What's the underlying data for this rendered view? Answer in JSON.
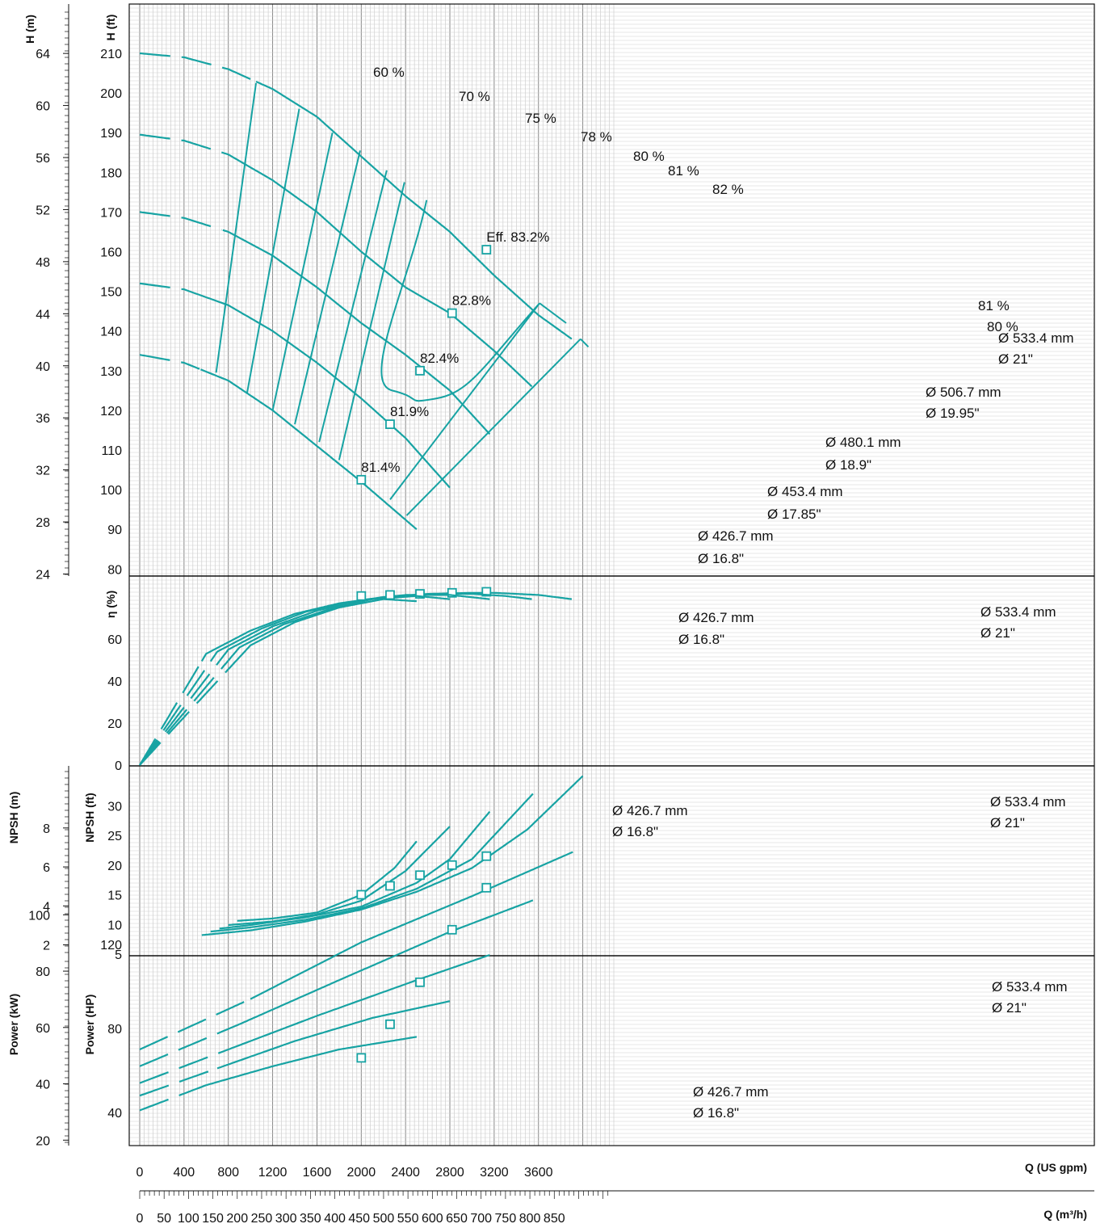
{
  "colors": {
    "curve": "#17a3a3",
    "grid": "#9a9a9a",
    "frame": "#111111"
  },
  "chart_data": {
    "type": "line",
    "x_axis": {
      "label": "Q (US gpm)",
      "ticks": [
        0,
        400,
        800,
        1200,
        1600,
        2000,
        2400,
        2800,
        3200,
        3600
      ],
      "range": [
        0,
        4300
      ]
    },
    "x_axis_secondary": {
      "label": "Q (m³/h)",
      "ticks": [
        0,
        50,
        100,
        150,
        200,
        250,
        300,
        350,
        400,
        450,
        500,
        550,
        600,
        650,
        700,
        750,
        800,
        850
      ],
      "factor_gpm_per_m3h": 4.4029
    },
    "head": {
      "ylabel": "H (ft)",
      "ylabel_secondary": "H (m)",
      "ticks": [
        80,
        90,
        100,
        110,
        120,
        130,
        140,
        150,
        160,
        170,
        180,
        190,
        200,
        210
      ],
      "ticks_secondary": [
        24,
        28,
        32,
        36,
        40,
        44,
        48,
        52,
        56,
        60,
        64
      ],
      "ylim": [
        77,
        220
      ],
      "series": [
        {
          "label1": "Ø 533.4  mm",
          "label2": "Ø 21\"",
          "x": [
            0,
            400,
            800,
            1200,
            1600,
            2000,
            2400,
            2800,
            3200,
            3600,
            3900
          ],
          "y": [
            210,
            209,
            206,
            201,
            194,
            184,
            174,
            165,
            154,
            144,
            138
          ],
          "dashed_to": 1050,
          "marker": {
            "x": 3130,
            "y": 160.5,
            "label": "Eff.  83.2%"
          }
        },
        {
          "label1": "Ø 506.7  mm",
          "label2": "Ø 19.95\"",
          "x": [
            0,
            400,
            800,
            1200,
            1600,
            2000,
            2400,
            2800,
            3200,
            3540
          ],
          "y": [
            189.5,
            188,
            184.5,
            178,
            170,
            160,
            151,
            144.5,
            135,
            126
          ],
          "dashed_to": 900,
          "marker": {
            "x": 2820,
            "y": 144.5,
            "label": "82.8%"
          }
        },
        {
          "label1": "Ø 480.1  mm",
          "label2": "Ø 18.9\"",
          "x": [
            0,
            400,
            800,
            1200,
            1600,
            2000,
            2400,
            2800,
            3160
          ],
          "y": [
            170,
            168.5,
            165,
            159,
            151,
            142,
            134,
            125,
            114
          ],
          "dashed_to": 750,
          "marker": {
            "x": 2530,
            "y": 130,
            "label": "82.4%"
          }
        },
        {
          "label1": "Ø 453.4  mm",
          "label2": "Ø 17.85\"",
          "x": [
            0,
            400,
            800,
            1200,
            1600,
            2000,
            2400,
            2800
          ],
          "y": [
            152,
            150.5,
            146.5,
            140,
            132,
            123,
            113,
            100.5
          ],
          "dashed_to": 600,
          "marker": {
            "x": 2260,
            "y": 116.5,
            "label": "81.9%"
          }
        },
        {
          "label1": "Ø 426.7  mm",
          "label2": "Ø 16.8\"",
          "x": [
            0,
            400,
            800,
            1200,
            1600,
            2000,
            2500
          ],
          "y": [
            134,
            132,
            127.5,
            120,
            111,
            102,
            90
          ],
          "dashed_to": 550,
          "marker": {
            "x": 2000,
            "y": 102.5,
            "label": "81.4%"
          }
        }
      ],
      "efficiency_lines": [
        {
          "label": "60 %",
          "points": [
            [
              690,
              129.5
            ],
            [
              1050,
              202.5
            ]
          ]
        },
        {
          "label": "70 %",
          "points": [
            [
              970,
              124.5
            ],
            [
              1440,
              196
            ]
          ]
        },
        {
          "label": "75 %",
          "points": [
            [
              1200,
              120
            ],
            [
              1740,
              190
            ]
          ]
        },
        {
          "label": "78 %",
          "points": [
            [
              1400,
              116.5
            ],
            [
              1990,
              185.5
            ]
          ]
        },
        {
          "label": "80 %",
          "points": [
            [
              1620,
              112
            ],
            [
              2230,
              180.5
            ]
          ]
        },
        {
          "label": "81 %",
          "points": [
            [
              1800,
              107.5
            ],
            [
              2390,
              177.5
            ]
          ]
        },
        {
          "label": "82 %",
          "points": [
            [
              2590,
              173
            ]
          ]
        },
        {
          "label": "81 %",
          "points": [
            [
              2260,
              97.5
            ],
            [
              3610,
              147
            ]
          ]
        },
        {
          "label": "80 %",
          "points": [
            [
              2410,
              93.5
            ],
            [
              3980,
              138
            ]
          ]
        }
      ],
      "eff_82_loop": [
        [
          2590,
          173
        ],
        [
          2430,
          152
        ],
        [
          2280,
          125
        ],
        [
          2380,
          121.5
        ],
        [
          2680,
          123
        ],
        [
          3100,
          131
        ],
        [
          3610,
          147
        ]
      ],
      "eff_81_ext": [
        [
          3610,
          147
        ],
        [
          3850,
          142
        ]
      ],
      "eff_80_ext": [
        [
          3980,
          138
        ],
        [
          4050,
          136
        ]
      ]
    },
    "efficiency": {
      "ylabel": "η (%)",
      "ticks": [
        0,
        20,
        40,
        60
      ],
      "ylim": [
        0,
        90
      ],
      "series": [
        {
          "label1": "Ø 533.4  mm",
          "label2": "Ø 21\"",
          "x": [
            0,
            600,
            1000,
            1400,
            1800,
            2200,
            2600,
            3000,
            3200,
            3600,
            3900
          ],
          "y": [
            0,
            53,
            64,
            72,
            77,
            80,
            81.5,
            82,
            82,
            81,
            79
          ],
          "dashed_to": 560,
          "marker": {
            "x": 3130,
            "y": 82.5
          }
        },
        {
          "label1": "",
          "label2": "",
          "x": [
            0,
            700,
            1100,
            1500,
            1900,
            2300,
            2700,
            3000,
            3300,
            3540
          ],
          "y": [
            0,
            54,
            65,
            73,
            77.5,
            80.5,
            81.5,
            81.5,
            80.5,
            79
          ],
          "dashed_to": 640,
          "marker": {
            "x": 2820,
            "y": 82
          }
        },
        {
          "label1": "",
          "label2": "",
          "x": [
            0,
            800,
            1200,
            1600,
            2000,
            2400,
            2800,
            3160
          ],
          "y": [
            0,
            55,
            66,
            73.5,
            78.5,
            81,
            81,
            79
          ],
          "dashed_to": 720,
          "marker": {
            "x": 2530,
            "y": 81.5
          }
        },
        {
          "label1": "",
          "label2": "",
          "x": [
            0,
            900,
            1300,
            1700,
            2100,
            2500,
            2800
          ],
          "y": [
            0,
            56,
            67,
            74,
            79,
            80.5,
            79
          ],
          "dashed_to": 800,
          "marker": {
            "x": 2260,
            "y": 81
          }
        },
        {
          "label1": "Ø 426.7  mm",
          "label2": "Ø 16.8\"",
          "x": [
            0,
            1000,
            1400,
            1800,
            2200,
            2500
          ],
          "y": [
            0,
            57,
            68,
            75,
            79,
            78
          ],
          "dashed_to": 900,
          "marker": {
            "x": 2000,
            "y": 80.5
          }
        }
      ]
    },
    "npsh": {
      "ylabel": "NPSH (ft)",
      "ylabel_secondary": "NPSH (m)",
      "ticks": [
        5,
        10,
        15,
        20,
        25,
        30
      ],
      "ticks_secondary": [
        2,
        4,
        6,
        8
      ],
      "ylim": [
        5,
        37
      ],
      "series": [
        {
          "label1": "Ø 533.4  mm",
          "label2": "Ø 21\"",
          "x": [
            560,
            1000,
            1500,
            2000,
            2500,
            3000,
            3500,
            4000
          ],
          "y": [
            8.2,
            9,
            10.5,
            12.5,
            15.5,
            19.5,
            26,
            35
          ],
          "marker": {
            "x": 3130,
            "y": 21.5
          }
        },
        {
          "label1": "",
          "label2": "",
          "x": [
            640,
            1000,
            1500,
            2000,
            2500,
            3000,
            3550
          ],
          "y": [
            8.8,
            9.5,
            10.8,
            12.7,
            16,
            21,
            32
          ],
          "marker": {
            "x": 2820,
            "y": 20
          }
        },
        {
          "label1": "",
          "label2": "",
          "x": [
            720,
            1000,
            1500,
            2000,
            2500,
            2800,
            3160
          ],
          "y": [
            9.3,
            9.9,
            11.2,
            13,
            17,
            21,
            29
          ],
          "marker": {
            "x": 2530,
            "y": 18.3
          }
        },
        {
          "label1": "",
          "label2": "",
          "x": [
            800,
            1200,
            1600,
            2000,
            2400,
            2800
          ],
          "y": [
            9.9,
            10.5,
            11.7,
            14,
            19,
            26.5
          ],
          "marker": {
            "x": 2260,
            "y": 16.5
          }
        },
        {
          "label1": "Ø 426.7  mm",
          "label2": "Ø 16.8\"",
          "x": [
            880,
            1200,
            1600,
            2000,
            2300,
            2500
          ],
          "y": [
            10.6,
            11,
            12,
            15,
            19.5,
            24
          ],
          "marker": {
            "x": 2000,
            "y": 15
          }
        }
      ]
    },
    "power": {
      "ylabel": "Power (HP)",
      "ylabel_secondary": "Power (kW)",
      "ticks": [
        40,
        80,
        120
      ],
      "ticks_secondary": [
        20,
        40,
        60,
        80,
        100
      ],
      "ylim": [
        20,
        175
      ],
      "series": [
        {
          "label1": "Ø 533.4  mm",
          "label2": "Ø 21\"",
          "x": [
            0,
            1000,
            2000,
            3000,
            3910
          ],
          "y": [
            70,
            94,
            121,
            143,
            164
          ],
          "dashed_to": 1000,
          "marker": {
            "x": 3130,
            "y": 147
          }
        },
        {
          "label1": "",
          "label2": "",
          "x": [
            0,
            900,
            1800,
            2800,
            3550
          ],
          "y": [
            62,
            82,
            103,
            126,
            141
          ],
          "dashed_to": 900,
          "marker": {
            "x": 2820,
            "y": 127
          }
        },
        {
          "label1": "",
          "label2": "",
          "x": [
            0,
            800,
            1600,
            2500,
            3160
          ],
          "y": [
            54,
            70,
            86,
            103,
            115
          ],
          "dashed_to": 800,
          "marker": {
            "x": 2530,
            "y": 102
          }
        },
        {
          "label1": "",
          "label2": "",
          "x": [
            0,
            700,
            1400,
            2100,
            2800
          ],
          "y": [
            48,
            61,
            74,
            85,
            93
          ],
          "dashed_to": 700,
          "marker": {
            "x": 2260,
            "y": 82
          }
        },
        {
          "label1": "Ø 426.7  mm",
          "label2": "Ø 16.8\"",
          "x": [
            0,
            600,
            1200,
            1800,
            2500
          ],
          "y": [
            41,
            53,
            62,
            70,
            76
          ],
          "dashed_to": 600,
          "marker": {
            "x": 2000,
            "y": 66
          }
        }
      ]
    }
  }
}
